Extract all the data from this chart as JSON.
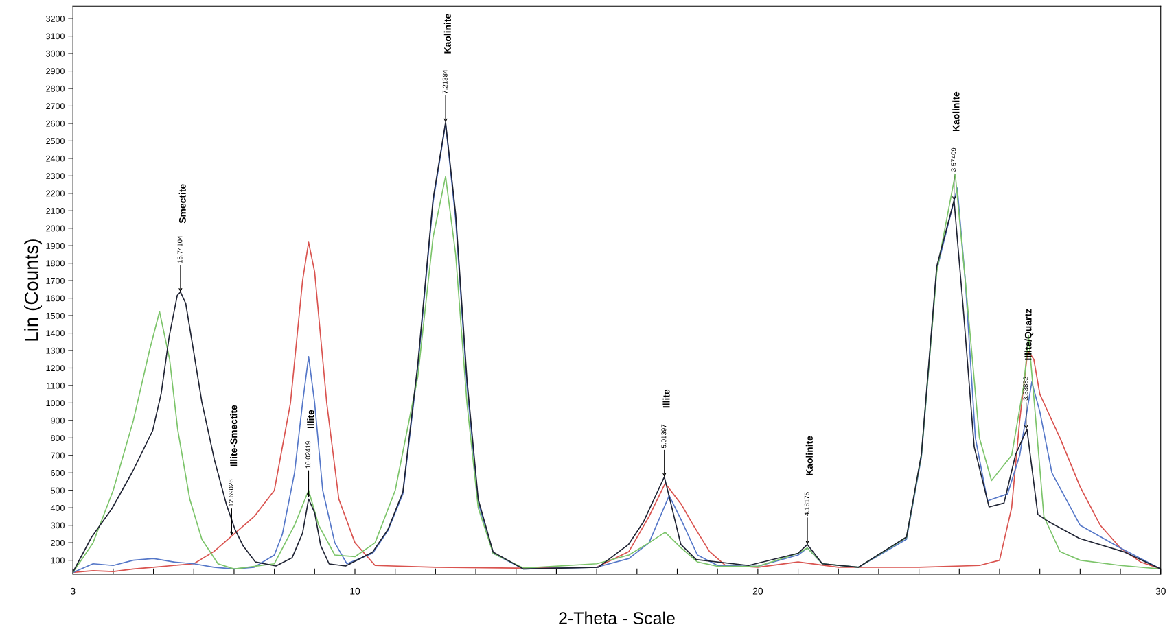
{
  "chart_data": {
    "type": "line",
    "xlabel": "2-Theta - Scale",
    "ylabel": "Lin (Counts)",
    "xlim": [
      3,
      30
    ],
    "ylim": [
      20,
      3270
    ],
    "xticks": [
      3,
      {
        "value": 4,
        "label": null
      },
      {
        "value": 5,
        "label": null
      },
      {
        "value": 6,
        "label": null
      },
      {
        "value": 7,
        "label": null
      },
      {
        "value": 8,
        "label": null
      },
      {
        "value": 9,
        "label": null
      },
      10,
      {
        "value": 11,
        "label": null
      },
      {
        "value": 12,
        "label": null
      },
      {
        "value": 13,
        "label": null
      },
      {
        "value": 14,
        "label": null
      },
      {
        "value": 15,
        "label": null
      },
      {
        "value": 16,
        "label": null
      },
      {
        "value": 17,
        "label": null
      },
      {
        "value": 18,
        "label": null
      },
      {
        "value": 19,
        "label": null
      },
      20,
      {
        "value": 21,
        "label": null
      },
      {
        "value": 22,
        "label": null
      },
      {
        "value": 23,
        "label": null
      },
      {
        "value": 24,
        "label": null
      },
      {
        "value": 25,
        "label": null
      },
      {
        "value": 26,
        "label": null
      },
      {
        "value": 27,
        "label": null
      },
      {
        "value": 28,
        "label": null
      },
      {
        "value": 29,
        "label": null
      },
      30
    ],
    "yticks": [
      100,
      200,
      300,
      400,
      500,
      600,
      700,
      800,
      900,
      1000,
      1100,
      1200,
      1300,
      1400,
      1500,
      1600,
      1700,
      1800,
      1900,
      2000,
      2100,
      2200,
      2300,
      2400,
      2500,
      2600,
      2700,
      2800,
      2900,
      3000,
      3100,
      3200
    ],
    "grid": false,
    "marker": "none",
    "line_style": "solid",
    "series": [
      {
        "color": "#d9534f",
        "x": [
          3.0,
          3.5,
          4.0,
          4.5,
          5.0,
          5.5,
          6.0,
          6.5,
          7.0,
          7.5,
          8.0,
          8.4,
          8.7,
          8.85,
          9.0,
          9.3,
          9.6,
          10.0,
          10.5,
          12.0,
          14.0,
          16.0,
          16.8,
          17.3,
          17.7,
          18.1,
          18.4,
          18.8,
          19.2,
          20.0,
          21.0,
          22.0,
          24.0,
          25.5,
          26.0,
          26.3,
          26.5,
          26.7,
          26.85,
          27.0,
          27.5,
          28.0,
          28.5,
          29.0,
          29.5,
          30.0
        ],
        "values": [
          30,
          40,
          35,
          50,
          60,
          70,
          80,
          150,
          250,
          350,
          500,
          1000,
          1700,
          1920,
          1750,
          1000,
          450,
          200,
          70,
          60,
          55,
          60,
          150,
          350,
          540,
          420,
          300,
          150,
          70,
          60,
          90,
          60,
          60,
          70,
          100,
          400,
          900,
          1300,
          1250,
          1050,
          800,
          520,
          300,
          170,
          90,
          50
        ]
      },
      {
        "color": "#5577c8",
        "x": [
          3.0,
          3.5,
          4.0,
          4.5,
          5.0,
          5.5,
          6.0,
          6.5,
          7.0,
          7.5,
          8.0,
          8.2,
          8.5,
          8.7,
          8.85,
          9.0,
          9.2,
          9.5,
          9.8,
          10.44,
          10.82,
          11.19,
          11.56,
          11.94,
          12.25,
          12.5,
          12.78,
          13.06,
          13.43,
          14.18,
          16.0,
          16.8,
          17.3,
          17.8,
          18.1,
          18.5,
          19.0,
          20.0,
          21.0,
          21.23,
          21.6,
          22.5,
          23.69,
          24.06,
          24.44,
          24.95,
          25.15,
          25.4,
          25.7,
          26.2,
          26.5,
          26.8,
          27.0,
          27.3,
          28.0,
          29.0,
          30.0
        ],
        "values": [
          30,
          80,
          70,
          100,
          110,
          90,
          80,
          60,
          50,
          60,
          130,
          250,
          600,
          1000,
          1265,
          1000,
          500,
          200,
          80,
          140,
          270,
          480,
          1200,
          2150,
          2600,
          2050,
          1100,
          430,
          140,
          50,
          60,
          110,
          200,
          470,
          330,
          130,
          70,
          65,
          130,
          170,
          80,
          60,
          220,
          690,
          1760,
          2230,
          1700,
          800,
          440,
          480,
          700,
          1120,
          950,
          600,
          300,
          170,
          50
        ]
      },
      {
        "color": "#7cc46a",
        "x": [
          3.0,
          3.5,
          4.0,
          4.5,
          4.9,
          5.15,
          5.4,
          5.6,
          5.9,
          6.2,
          6.6,
          7.0,
          8.0,
          8.5,
          8.85,
          9.1,
          9.5,
          10.0,
          10.5,
          11.0,
          11.56,
          11.94,
          12.25,
          12.5,
          12.78,
          13.06,
          13.43,
          14.18,
          16.0,
          16.8,
          17.3,
          17.7,
          18.1,
          18.5,
          19.0,
          20.0,
          21.0,
          21.23,
          21.6,
          22.5,
          23.69,
          24.06,
          24.44,
          24.9,
          25.15,
          25.5,
          25.8,
          26.3,
          26.6,
          26.72,
          26.9,
          27.1,
          27.5,
          28.0,
          29.0,
          30.0
        ],
        "values": [
          30,
          200,
          500,
          900,
          1300,
          1523,
          1250,
          850,
          450,
          220,
          80,
          50,
          80,
          300,
          500,
          300,
          130,
          120,
          200,
          500,
          1150,
          1950,
          2297,
          1850,
          1000,
          400,
          140,
          55,
          80,
          130,
          200,
          260,
          170,
          90,
          65,
          65,
          140,
          170,
          80,
          60,
          230,
          700,
          1750,
          2310,
          1700,
          800,
          556,
          700,
          1100,
          1385,
          900,
          350,
          150,
          100,
          70,
          50
        ]
      },
      {
        "color": "#1f2333",
        "x": [
          3.0,
          3.46,
          3.97,
          4.48,
          4.98,
          5.19,
          5.39,
          5.59,
          5.67,
          5.8,
          6.0,
          6.2,
          6.51,
          6.81,
          7.02,
          7.22,
          7.53,
          8.04,
          8.44,
          8.7,
          8.85,
          9.0,
          9.15,
          9.36,
          9.77,
          10.44,
          10.82,
          11.19,
          11.56,
          11.94,
          12.25,
          12.5,
          12.78,
          13.06,
          13.43,
          14.18,
          16.04,
          16.79,
          17.16,
          17.68,
          18.09,
          18.47,
          19.77,
          21.0,
          21.23,
          21.6,
          22.5,
          23.69,
          24.06,
          24.44,
          24.87,
          25.09,
          25.37,
          25.74,
          26.11,
          26.4,
          26.68,
          26.95,
          27.23,
          27.98,
          29.1,
          30.0
        ],
        "values": [
          32,
          231,
          396,
          607,
          842,
          1053,
          1381,
          1616,
          1635,
          1570,
          1290,
          1006,
          677,
          419,
          278,
          184,
          90,
          67,
          114,
          255,
          450,
          372,
          184,
          79,
          67,
          147,
          276,
          491,
          1222,
          2168,
          2606,
          2082,
          1136,
          448,
          147,
          50,
          60,
          190,
          319,
          577,
          190,
          104,
          70,
          140,
          190,
          80,
          60,
          233,
          706,
          1781,
          2160,
          1566,
          749,
          405,
          427,
          706,
          850,
          362,
          319,
          225,
          147,
          50
        ]
      }
    ],
    "annotations": [
      "Smectite",
      {
        "text": "15.74104",
        "x": 5.67,
        "y": 1635
      },
      "Illite-Smectite",
      {
        "text": "12.69026",
        "x": 6.94,
        "y": 242
      },
      "Illite",
      {
        "text": "10.02419",
        "x": 8.85,
        "y": 460
      },
      "Kaolinite",
      {
        "text": "7.21384",
        "x": 12.25,
        "y": 2606
      },
      "Illite",
      {
        "text": "5.01397",
        "x": 17.68,
        "y": 577
      },
      "Kaolinite",
      {
        "text": "4.18175",
        "x": 21.23,
        "y": 190
      },
      "Kaolinite",
      {
        "text": "3.57409",
        "x": 24.87,
        "y": 2160
      },
      "Illite/Quartz",
      {
        "text": "3.33882",
        "x": 26.66,
        "y": 850
      }
    ]
  }
}
